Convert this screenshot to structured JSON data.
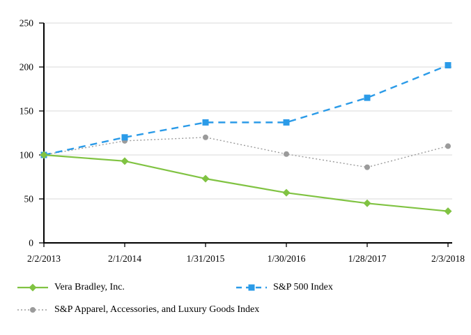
{
  "chart_data": {
    "type": "line",
    "title": "",
    "xlabel": "",
    "ylabel": "",
    "x_labels": [
      "2/2/2013",
      "2/1/2014",
      "1/31/2015",
      "1/30/2016",
      "1/28/2017",
      "2/3/2018"
    ],
    "y_ticks": [
      0,
      50,
      100,
      150,
      200,
      250
    ],
    "ylim": [
      0,
      250
    ],
    "grid": true,
    "legend_position": "bottom",
    "series": [
      {
        "name": "S&P Apparel, Accessories, and Luxury Goods Index",
        "values": [
          100,
          116,
          120,
          101,
          86,
          110
        ],
        "color": "#9b9b9b",
        "marker": "circle",
        "line_style": "dotted"
      },
      {
        "name": "S&P 500 Index",
        "values": [
          100,
          120,
          137,
          137,
          165,
          202
        ],
        "color": "#2b9be8",
        "marker": "square",
        "line_style": "dashed"
      },
      {
        "name": "Vera Bradley, Inc.",
        "values": [
          100,
          93,
          73,
          57,
          45,
          36
        ],
        "color": "#80c342",
        "marker": "diamond",
        "line_style": "solid"
      }
    ],
    "colors": {
      "gridline": "#d9d9d9",
      "axis": "#000000",
      "text": "#000000",
      "background": "#ffffff"
    }
  }
}
